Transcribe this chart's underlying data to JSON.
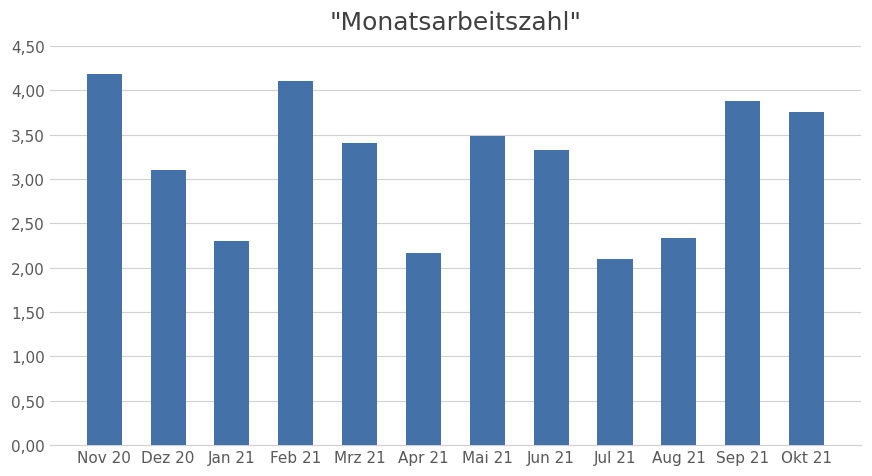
{
  "title": "\"Monatsarbeitszahl\"",
  "categories": [
    "Nov 20",
    "Dez 20",
    "Jan 21",
    "Feb 21",
    "Mrz 21",
    "Apr 21",
    "Mai 21",
    "Jun 21",
    "Jul 21",
    "Aug 21",
    "Sep 21",
    "Okt 21"
  ],
  "values": [
    4.18,
    3.1,
    2.3,
    4.1,
    3.4,
    2.17,
    3.48,
    3.33,
    2.1,
    2.33,
    3.88,
    3.75
  ],
  "bar_color": "#4472A8",
  "ylim": [
    0,
    4.5
  ],
  "yticks": [
    0.0,
    0.5,
    1.0,
    1.5,
    2.0,
    2.5,
    3.0,
    3.5,
    4.0,
    4.5
  ],
  "ytick_labels": [
    "0,00",
    "0,50",
    "1,00",
    "1,50",
    "2,00",
    "2,50",
    "3,00",
    "3,50",
    "4,00",
    "4,50"
  ],
  "title_fontsize": 18,
  "tick_fontsize": 11,
  "background_color": "#ffffff",
  "grid_color": "#d0d0d0",
  "bar_width": 0.55
}
